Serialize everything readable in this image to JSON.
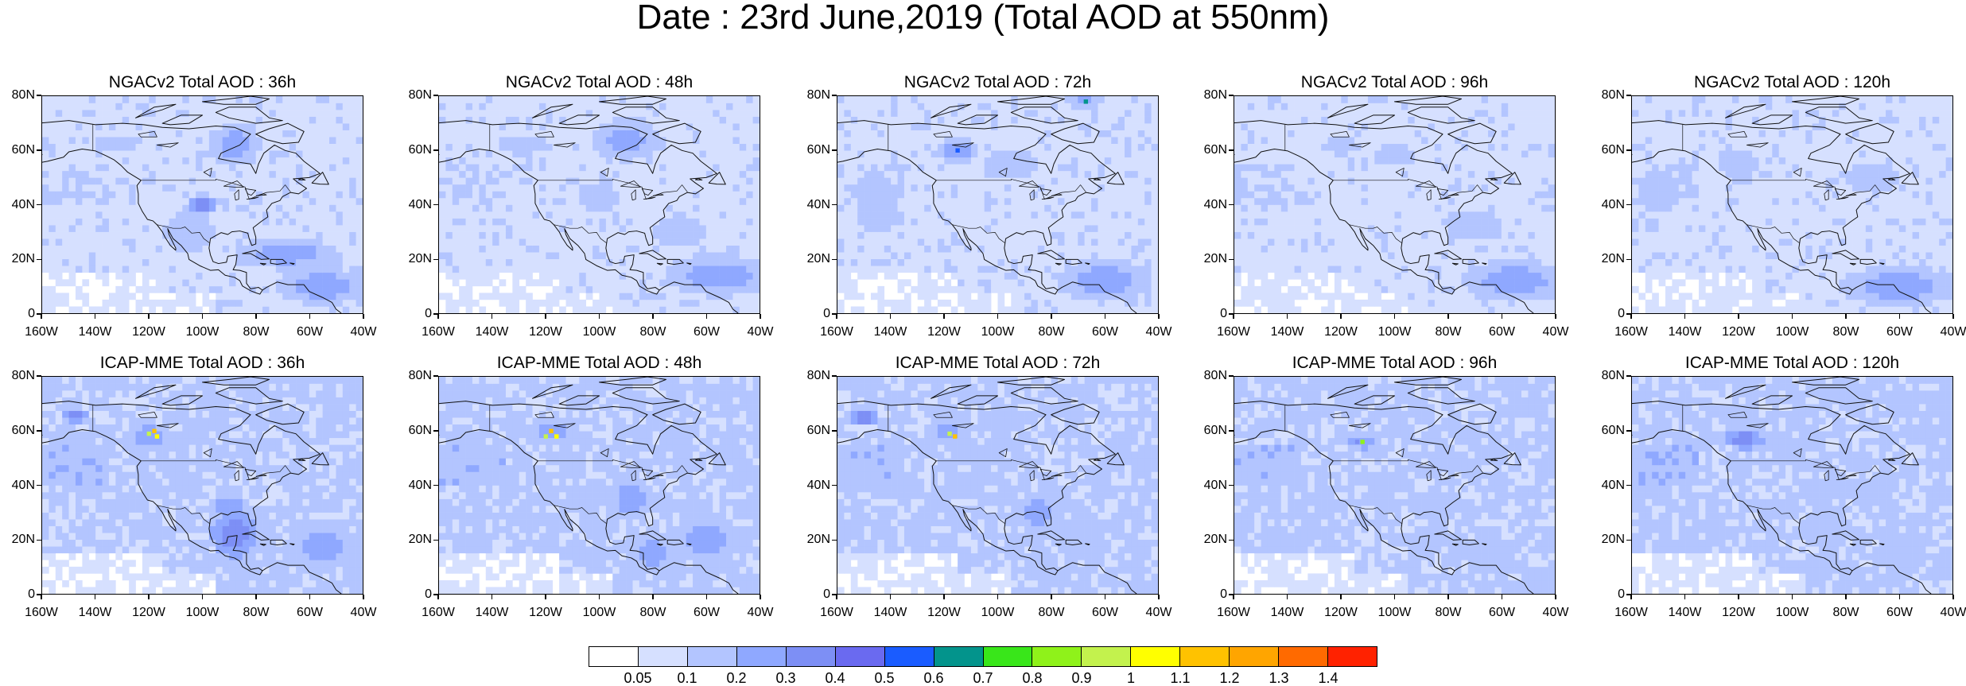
{
  "title": "Date : 23rd June,2019 (Total AOD at 550nm)",
  "x_axis_labels": [
    "160W",
    "140W",
    "120W",
    "100W",
    "80W",
    "60W",
    "40W"
  ],
  "y_axis_labels": [
    "80N",
    "60N",
    "40N",
    "20N",
    "0"
  ],
  "lon_range": [
    -160,
    -40
  ],
  "lat_range": [
    0,
    80
  ],
  "rows": [
    {
      "model": "NGACv2",
      "panels": [
        {
          "title": "NGACv2 Total AOD : 36h",
          "level": 1,
          "blobs": [
            [
              -88,
              62,
              10,
              8,
              3
            ],
            [
              -100,
              40,
              5,
              4,
              4
            ],
            [
              -68,
              22,
              20,
              6,
              3
            ],
            [
              -55,
              10,
              18,
              7,
              3
            ],
            [
              -132,
              62,
              12,
              4,
              2
            ],
            [
              -105,
              30,
              14,
              10,
              2
            ]
          ],
          "hotspots": []
        },
        {
          "title": "NGACv2 Total AOD : 48h",
          "level": 1,
          "blobs": [
            [
              -90,
              64,
              12,
              8,
              3
            ],
            [
              -70,
              30,
              14,
              8,
              2
            ],
            [
              -55,
              14,
              20,
              8,
              3
            ],
            [
              -128,
              62,
              14,
              5,
              2
            ],
            [
              -100,
              42,
              10,
              8,
              2
            ]
          ],
          "hotspots": []
        },
        {
          "title": "NGACv2 Total AOD : 72h",
          "level": 1,
          "blobs": [
            [
              -115,
              60,
              8,
              5,
              3
            ],
            [
              -68,
              78,
              6,
              3,
              3
            ],
            [
              -60,
              12,
              18,
              8,
              3
            ],
            [
              -95,
              55,
              15,
              8,
              2
            ],
            [
              -145,
              40,
              12,
              15,
              2
            ]
          ],
          "hotspots": [
            [
              -115,
              60,
              6
            ],
            [
              -67,
              78,
              7
            ]
          ]
        },
        {
          "title": "NGACv2 Total AOD : 96h",
          "level": 1,
          "blobs": [
            [
              -120,
              62,
              10,
              5,
              2
            ],
            [
              -70,
              32,
              16,
              8,
              2
            ],
            [
              -55,
              12,
              20,
              8,
              3
            ],
            [
              -100,
              58,
              12,
              6,
              2
            ]
          ],
          "hotspots": []
        },
        {
          "title": "NGACv2 Total AOD : 120h",
          "level": 1,
          "blobs": [
            [
              -150,
              45,
              10,
              12,
              2
            ],
            [
              -70,
              50,
              14,
              8,
              2
            ],
            [
              -60,
              10,
              22,
              8,
              3
            ],
            [
              -120,
              55,
              12,
              6,
              2
            ]
          ],
          "hotspots": []
        }
      ]
    },
    {
      "model": "ICAP-MME",
      "panels": [
        {
          "title": "ICAP-MME Total AOD : 36h",
          "level": 2,
          "blobs": [
            [
              -88,
              22,
              10,
              10,
              4
            ],
            [
              -90,
              32,
              8,
              6,
              3
            ],
            [
              -120,
              58,
              10,
              6,
              3
            ],
            [
              -148,
              66,
              5,
              3,
              4
            ],
            [
              -55,
              18,
              12,
              10,
              3
            ]
          ],
          "hotspots": [
            [
              -118,
              60,
              12
            ],
            [
              -117,
              58,
              11
            ],
            [
              -120,
              59,
              10
            ]
          ]
        },
        {
          "title": "ICAP-MME Total AOD : 48h",
          "level": 2,
          "blobs": [
            [
              -88,
              35,
              10,
              8,
              3
            ],
            [
              -118,
              60,
              10,
              6,
              3
            ],
            [
              -60,
              20,
              12,
              10,
              3
            ],
            [
              -80,
              15,
              10,
              8,
              3
            ]
          ],
          "hotspots": [
            [
              -118,
              60,
              12
            ],
            [
              -116,
              58,
              11
            ],
            [
              -120,
              58,
              10
            ]
          ]
        },
        {
          "title": "ICAP-MME Total AOD : 72h",
          "level": 2,
          "blobs": [
            [
              -118,
              60,
              8,
              5,
              3
            ],
            [
              -85,
              30,
              10,
              8,
              3
            ],
            [
              -150,
              65,
              5,
              3,
              4
            ],
            [
              -70,
              20,
              14,
              10,
              2
            ]
          ],
          "hotspots": [
            [
              -116,
              58,
              12
            ],
            [
              -118,
              59,
              10
            ]
          ]
        },
        {
          "title": "ICAP-MME Total AOD : 96h",
          "level": 2,
          "blobs": [
            [
              -112,
              56,
              8,
              4,
              3
            ],
            [
              -85,
              32,
              10,
              8,
              2
            ],
            [
              -65,
              15,
              14,
              10,
              2
            ],
            [
              -150,
              60,
              8,
              5,
              2
            ]
          ],
          "hotspots": [
            [
              -112,
              56,
              9
            ],
            [
              -114,
              56,
              4
            ]
          ]
        },
        {
          "title": "ICAP-MME Total AOD : 120h",
          "level": 2,
          "blobs": [
            [
              -118,
              57,
              8,
              4,
              4
            ],
            [
              -88,
              25,
              12,
              10,
              2
            ],
            [
              -60,
              15,
              14,
              10,
              2
            ],
            [
              -150,
              60,
              8,
              6,
              2
            ]
          ],
          "hotspots": []
        }
      ]
    }
  ],
  "colorbar": {
    "colors": [
      "#ffffff",
      "#d6e0ff",
      "#b3c5ff",
      "#8fa8ff",
      "#7d8ff5",
      "#6a6af0",
      "#1a5cff",
      "#03948c",
      "#39e61a",
      "#8ff21a",
      "#c3f24d",
      "#ffff00",
      "#ffc200",
      "#ffa500",
      "#ff6a00",
      "#ff2200"
    ],
    "labels": [
      "0.05",
      "0.1",
      "0.2",
      "0.3",
      "0.4",
      "0.5",
      "0.6",
      "0.7",
      "0.8",
      "0.9",
      "1",
      "1.1",
      "1.2",
      "1.3",
      "1.4"
    ]
  }
}
